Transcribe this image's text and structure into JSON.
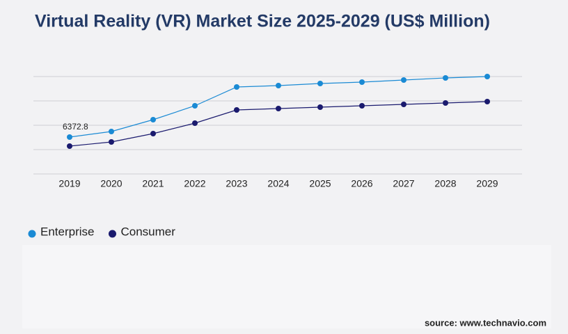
{
  "chart_data": {
    "type": "line",
    "title": "Virtual Reality (VR) Market Size 2025-2029 (US$ Million)",
    "categories": [
      "2019",
      "2020",
      "2021",
      "2022",
      "2023",
      "2024",
      "2025",
      "2026",
      "2027",
      "2028",
      "2029"
    ],
    "series": [
      {
        "name": "Enterprise",
        "color": "#1a8ad4",
        "values": [
          6372.8,
          7335,
          9379,
          11784,
          15030,
          15270,
          15631,
          15872,
          16232,
          16593,
          16834
        ]
      },
      {
        "name": "Consumer",
        "color": "#1a1a6e",
        "values": [
          4810,
          5531,
          6974,
          8778,
          11062,
          11303,
          11543,
          11784,
          12024,
          12265,
          12505
        ]
      }
    ],
    "ylim": [
      0,
      16834
    ],
    "grid": true,
    "source": "source: www.technavio.com"
  }
}
